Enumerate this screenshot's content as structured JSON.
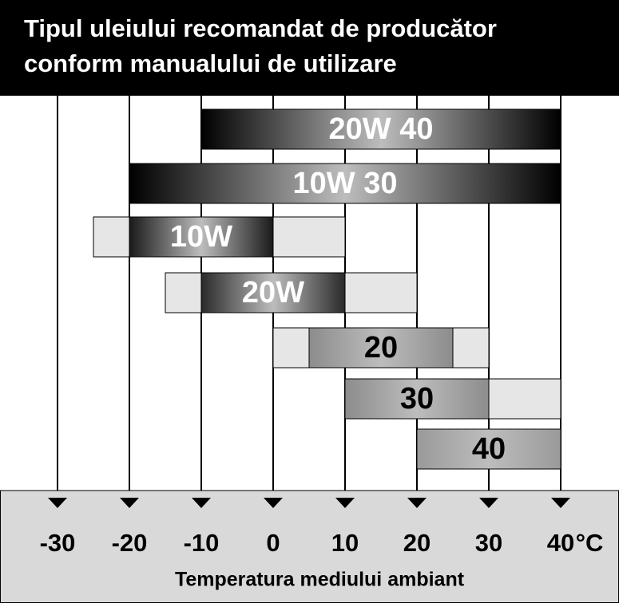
{
  "chart_data": {
    "type": "range",
    "title_lines": [
      "Tipul uleiului recomandat de producător",
      "conform manualului de utilizare"
    ],
    "categories": [
      "20W 40",
      "10W 30",
      "10W",
      "20W",
      "20",
      "30",
      "40"
    ],
    "preferred": [
      [
        -10,
        40
      ],
      [
        -20,
        40
      ],
      [
        -20,
        0
      ],
      [
        -10,
        10
      ],
      [
        5,
        25
      ],
      [
        10,
        30
      ],
      [
        20,
        40
      ]
    ],
    "extended": [
      null,
      null,
      [
        -25,
        10
      ],
      [
        -15,
        20
      ],
      [
        0,
        30
      ],
      [
        10,
        40
      ],
      null
    ],
    "colors": [
      "#000000",
      "#000000",
      "#1a1a1a",
      "#2a2a2a",
      "#8c8c8c",
      "#8c8c8c",
      "#9a9a9a"
    ],
    "extended_color": "#e6e6e6",
    "label_colors": [
      "#ffffff",
      "#ffffff",
      "#ffffff",
      "#ffffff",
      "#000000",
      "#000000",
      "#000000"
    ],
    "xlim": [
      -38,
      48
    ],
    "xticks": [
      -30,
      -20,
      -10,
      0,
      10,
      20,
      30,
      40
    ],
    "unit": "°C",
    "xlabel": "Temperatura mediului ambiant"
  }
}
